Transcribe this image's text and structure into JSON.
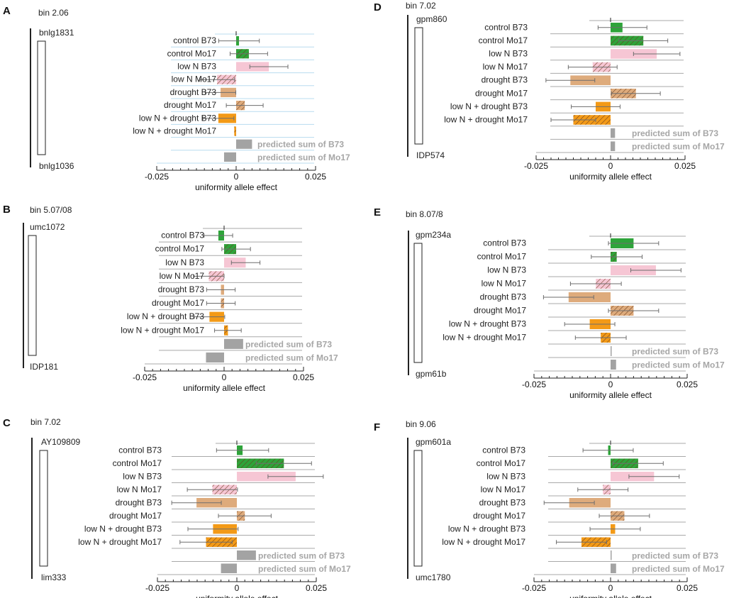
{
  "colors": {
    "green": "#2ea43a",
    "pink": "#f6c6d4",
    "tan": "#deab7c",
    "orange": "#f39a17",
    "gray": "#a3a3a3",
    "hatch": "#6b3d1e",
    "grid_blue": "#b8dcef",
    "grid_gray": "#a9a9a9",
    "errbar": "#6e6e6e"
  },
  "chart_data": [
    {
      "type": "bar",
      "orientation": "horizontal",
      "panel": "A",
      "bin": "bin 2.06",
      "marker_top": "bnlg1831",
      "marker_bottom": "bnlg1036",
      "grid": "blue",
      "xlabel": "uniformity allele effect",
      "xlim": [
        -0.025,
        0.025
      ],
      "xticks": [
        "-0.025",
        "0",
        "0.025"
      ],
      "categories": [
        "control B73",
        "control Mo17",
        "low N B73",
        "low N Mo17",
        "drought B73",
        "drought Mo17",
        "low N + drought B73",
        "low N + drought Mo17",
        "predicted sum of B73",
        "predicted sum of Mo17"
      ],
      "values": [
        0.0009,
        0.004,
        0.0103,
        -0.006,
        -0.0049,
        0.0027,
        -0.0056,
        -0.0006,
        0.005,
        -0.0038
      ],
      "errors": [
        0.0064,
        0.0059,
        0.006,
        0.0055,
        0.0048,
        0.0058,
        0.0049,
        0,
        0,
        0
      ],
      "hatched": [
        false,
        true,
        false,
        true,
        false,
        true,
        false,
        true,
        false,
        false
      ],
      "colors": [
        "green",
        "green",
        "pink",
        "pink",
        "tan",
        "tan",
        "orange",
        "orange",
        "gray",
        "gray"
      ]
    },
    {
      "type": "bar",
      "orientation": "horizontal",
      "panel": "B",
      "bin": "bin 5.07/08",
      "marker_top": "umc1072",
      "marker_bottom": "IDP181",
      "grid": "gray",
      "xlabel": "uniformity allele effect",
      "xlim": [
        -0.025,
        0.025
      ],
      "xticks": [
        "-0.025",
        "0",
        "0.025"
      ],
      "categories": [
        "control B73",
        "control Mo17",
        "low N B73",
        "low N Mo17",
        "drought B73",
        "drought Mo17",
        "low N + drought B73",
        "low N + drought Mo17",
        "predicted sum of B73",
        "predicted sum of Mo17"
      ],
      "values": [
        -0.0018,
        0.0038,
        0.0068,
        -0.0048,
        -0.001,
        -0.001,
        -0.0046,
        0.0012,
        0.006,
        -0.0057
      ],
      "errors": [
        0.0045,
        0.0045,
        0.0045,
        0.0048,
        0.0045,
        0.0045,
        0.0048,
        0.0042,
        0,
        0
      ],
      "hatched": [
        false,
        true,
        false,
        true,
        false,
        true,
        false,
        true,
        false,
        false
      ],
      "colors": [
        "green",
        "green",
        "pink",
        "pink",
        "tan",
        "tan",
        "orange",
        "orange",
        "gray",
        "gray"
      ]
    },
    {
      "type": "bar",
      "orientation": "horizontal",
      "panel": "C",
      "bin": "bin 7.02",
      "marker_top": "AY109809",
      "marker_bottom": "lim333",
      "grid": "gray",
      "xlabel": "uniformity allele effect",
      "xlim": [
        -0.025,
        0.025
      ],
      "xticks": [
        "-0.025",
        "0",
        "0.025"
      ],
      "categories": [
        "control B73",
        "control Mo17",
        "low N B73",
        "low N Mo17",
        "drought B73",
        "drought Mo17",
        "low N + drought B73",
        "low N + drought Mo17",
        "predicted sum of B73",
        "predicted sum of Mo17"
      ],
      "values": [
        0.0018,
        0.0148,
        0.0185,
        -0.0077,
        -0.0127,
        0.0025,
        -0.0075,
        -0.0097,
        0.006,
        -0.005
      ],
      "errors": [
        0.0082,
        0.0087,
        0.0087,
        0.0079,
        0.0078,
        0.0083,
        0.0079,
        0.0082,
        0,
        0
      ],
      "hatched": [
        false,
        true,
        false,
        true,
        false,
        true,
        false,
        true,
        false,
        false
      ],
      "colors": [
        "green",
        "green",
        "pink",
        "pink",
        "tan",
        "tan",
        "orange",
        "orange",
        "gray",
        "gray"
      ]
    },
    {
      "type": "bar",
      "orientation": "horizontal",
      "panel": "D",
      "bin": "bin 7.02",
      "marker_top": "gpm860",
      "marker_bottom": "IDP574",
      "grid": "gray",
      "xlabel": "uniformity allele effect",
      "xlim": [
        -0.025,
        0.025
      ],
      "xticks": [
        "-0.025",
        "0",
        "0.025"
      ],
      "categories": [
        "control B73",
        "control Mo17",
        "low N B73",
        "low N Mo17",
        "drought B73",
        "drought Mo17",
        "low N + drought B73",
        "low N + drought Mo17",
        "predicted sum of B73",
        "predicted sum of Mo17"
      ],
      "values": [
        0.004,
        0.011,
        0.0155,
        -0.006,
        -0.0135,
        0.0085,
        -0.005,
        -0.0125,
        0.0015,
        0.0015
      ],
      "errors": [
        0.0082,
        0.0082,
        0.0078,
        0.0082,
        0.0082,
        0.0082,
        0.0082,
        0.0075,
        0,
        0
      ],
      "hatched": [
        false,
        true,
        false,
        true,
        false,
        true,
        false,
        true,
        false,
        false
      ],
      "colors": [
        "green",
        "green",
        "pink",
        "pink",
        "tan",
        "tan",
        "orange",
        "orange",
        "gray",
        "gray"
      ]
    },
    {
      "type": "bar",
      "orientation": "horizontal",
      "panel": "E",
      "bin": "bin 8.07/8",
      "marker_top": "gpm234a",
      "marker_bottom": "gpm61b",
      "grid": "gray",
      "xlabel": "uniformity allele effect",
      "xlim": [
        -0.025,
        0.025
      ],
      "xticks": [
        "-0.025",
        "0",
        "0.025"
      ],
      "categories": [
        "control B73",
        "control Mo17",
        "low N B73",
        "low N Mo17",
        "drought B73",
        "drought Mo17",
        "low N + drought B73",
        "low N + drought Mo17",
        "predicted sum of B73",
        "predicted sum of Mo17"
      ],
      "values": [
        0.0075,
        0.002,
        0.0148,
        -0.0048,
        -0.0137,
        0.0075,
        -0.0068,
        -0.0032,
        0.0003,
        0.0018
      ],
      "errors": [
        0.0082,
        0.0083,
        0.0082,
        0.0083,
        0.0082,
        0.0082,
        0.0082,
        0.0083,
        0,
        0
      ],
      "hatched": [
        false,
        true,
        false,
        true,
        false,
        true,
        false,
        true,
        false,
        false
      ],
      "colors": [
        "green",
        "green",
        "pink",
        "pink",
        "tan",
        "tan",
        "orange",
        "orange",
        "gray",
        "gray"
      ]
    },
    {
      "type": "bar",
      "orientation": "horizontal",
      "panel": "F",
      "bin": "bin 9.06",
      "marker_top": "gpm601a",
      "marker_bottom": "umc1780",
      "grid": "gray",
      "xlabel": "uniformity allele effect",
      "xlim": [
        -0.025,
        0.025
      ],
      "xticks": [
        "-0.025",
        "0",
        "0.025"
      ],
      "categories": [
        "control B73",
        "control Mo17",
        "low N B73",
        "low N Mo17",
        "drought B73",
        "drought Mo17",
        "low N + drought B73",
        "low N + drought Mo17",
        "predicted sum of B73",
        "predicted sum of Mo17"
      ],
      "values": [
        -0.0008,
        0.009,
        0.0142,
        -0.0025,
        -0.0135,
        0.0045,
        0.0015,
        -0.0095,
        0.0002,
        0.0018
      ],
      "errors": [
        0.0082,
        0.0082,
        0.0082,
        0.0082,
        0.0082,
        0.0082,
        0.0082,
        0.0082,
        0,
        0
      ],
      "hatched": [
        false,
        true,
        false,
        true,
        false,
        true,
        false,
        true,
        false,
        false
      ],
      "colors": [
        "green",
        "green",
        "pink",
        "pink",
        "tan",
        "tan",
        "orange",
        "orange",
        "gray",
        "gray"
      ]
    }
  ]
}
